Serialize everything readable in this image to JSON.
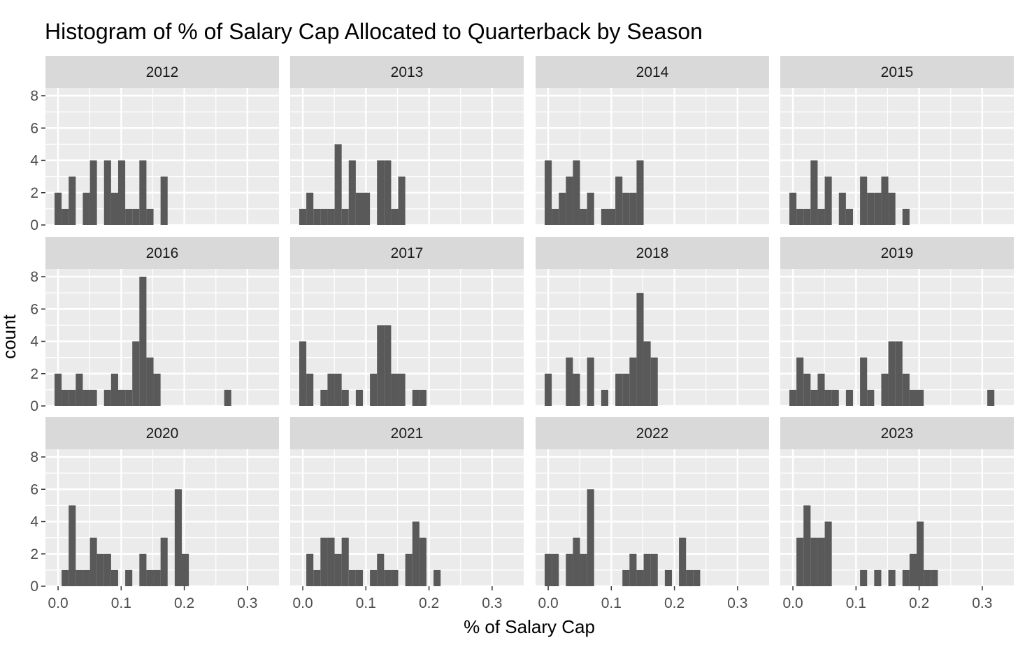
{
  "chart_data": {
    "type": "histogram",
    "title": "Histogram of % of Salary Cap Allocated to Quarterback by Season",
    "xlabel": "% of Salary Cap",
    "ylabel": "count",
    "xlim": [
      -0.02,
      0.35
    ],
    "ylim": [
      0,
      8
    ],
    "x_ticks": [
      "0.0",
      "0.1",
      "0.2",
      "0.3"
    ],
    "y_ticks": [
      "0",
      "2",
      "4",
      "6",
      "8"
    ],
    "bin_width": 0.0112,
    "bin_start": -0.0056,
    "colors": {
      "bar": "#595959",
      "panel": "#ebebeb",
      "strip": "#d9d9d9",
      "grid": "#ffffff"
    },
    "facets": [
      {
        "label": "2012",
        "counts": [
          2,
          1,
          3,
          0,
          2,
          4,
          0,
          4,
          2,
          4,
          1,
          1,
          4,
          1,
          0,
          3
        ]
      },
      {
        "label": "2013",
        "counts": [
          1,
          2,
          1,
          1,
          1,
          5,
          1,
          4,
          2,
          2,
          0,
          4,
          4,
          1,
          3
        ]
      },
      {
        "label": "2014",
        "counts": [
          4,
          1,
          2,
          3,
          4,
          1,
          2,
          0,
          1,
          1,
          3,
          2,
          2,
          4
        ]
      },
      {
        "label": "2015",
        "counts": [
          2,
          1,
          1,
          4,
          1,
          3,
          0,
          2,
          1,
          0,
          3,
          2,
          2,
          3,
          2,
          0,
          1
        ]
      },
      {
        "label": "2016",
        "counts": [
          2,
          1,
          1,
          2,
          1,
          1,
          0,
          1,
          2,
          1,
          1,
          4,
          8,
          3,
          2,
          0,
          0,
          0,
          0,
          0,
          0,
          0,
          0,
          0,
          1
        ]
      },
      {
        "label": "2017",
        "counts": [
          4,
          2,
          0,
          1,
          2,
          2,
          1,
          0,
          1,
          0,
          2,
          5,
          5,
          2,
          2,
          0,
          1,
          1
        ]
      },
      {
        "label": "2018",
        "counts": [
          2,
          0,
          0,
          3,
          2,
          0,
          3,
          0,
          1,
          0,
          2,
          2,
          3,
          7,
          4,
          3
        ]
      },
      {
        "label": "2019",
        "counts": [
          1,
          3,
          2,
          1,
          2,
          1,
          1,
          0,
          1,
          0,
          3,
          1,
          0,
          2,
          4,
          4,
          2,
          1,
          1,
          0,
          0,
          0,
          0,
          0,
          0,
          0,
          0,
          0,
          1
        ]
      },
      {
        "label": "2020",
        "counts": [
          0,
          1,
          5,
          1,
          1,
          3,
          2,
          2,
          1,
          0,
          1,
          0,
          2,
          1,
          1,
          3,
          0,
          6,
          2
        ]
      },
      {
        "label": "2021",
        "counts": [
          0,
          2,
          1,
          3,
          3,
          2,
          3,
          1,
          1,
          0,
          1,
          2,
          1,
          1,
          0,
          2,
          4,
          3,
          0,
          1
        ]
      },
      {
        "label": "2022",
        "counts": [
          2,
          2,
          0,
          2,
          3,
          2,
          6,
          0,
          0,
          0,
          0,
          1,
          2,
          1,
          2,
          2,
          0,
          1,
          0,
          3,
          1,
          1
        ]
      },
      {
        "label": "2023",
        "counts": [
          0,
          3,
          5,
          3,
          3,
          4,
          0,
          0,
          0,
          0,
          1,
          0,
          1,
          0,
          1,
          0,
          1,
          2,
          4,
          1,
          1
        ]
      }
    ]
  }
}
